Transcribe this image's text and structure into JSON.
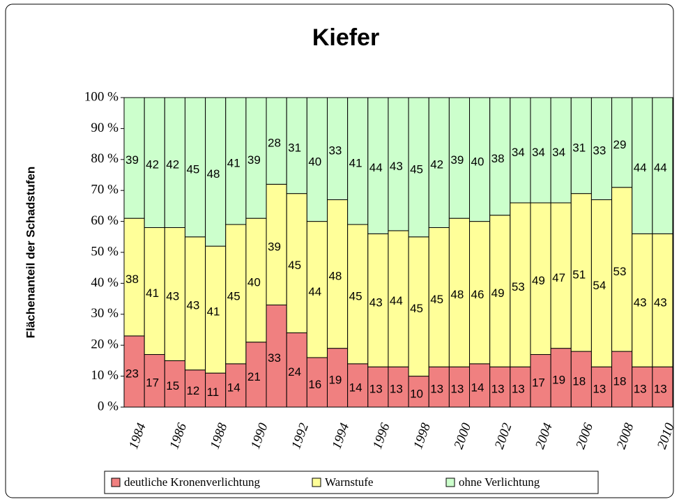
{
  "chart_data": {
    "type": "stacked_bar",
    "title": "Kiefer",
    "y_label": "Flächenanteil der Schadstufen",
    "categories": [
      "1984",
      null,
      "1986",
      null,
      "1988",
      null,
      "1990",
      null,
      "1992",
      null,
      "1994",
      null,
      "1996",
      null,
      "1998",
      null,
      "2000",
      null,
      "2002",
      null,
      "2004",
      null,
      "2006",
      null,
      "2008",
      null,
      "2010"
    ],
    "series": [
      {
        "name": "deutliche Kronenverlichtung",
        "color": "#f08080",
        "values": [
          23,
          17,
          15,
          12,
          11,
          14,
          21,
          33,
          24,
          16,
          19,
          14,
          13,
          13,
          10,
          13,
          13,
          14,
          13,
          13,
          17,
          19,
          18,
          13,
          18,
          13,
          13
        ]
      },
      {
        "name": "Warnstufe",
        "color": "#ffff99",
        "values": [
          38,
          41,
          43,
          43,
          41,
          45,
          40,
          39,
          45,
          44,
          48,
          45,
          43,
          44,
          45,
          45,
          48,
          46,
          49,
          53,
          49,
          47,
          51,
          54,
          53,
          43,
          43
        ]
      },
      {
        "name": "ohne Verlichtung",
        "color": "#ccffcc",
        "values": [
          39,
          42,
          42,
          45,
          48,
          41,
          39,
          28,
          31,
          40,
          33,
          41,
          44,
          43,
          45,
          42,
          39,
          40,
          38,
          34,
          34,
          34,
          31,
          33,
          29,
          44,
          44
        ]
      }
    ],
    "ylim": [
      0,
      100
    ],
    "yticks": [
      {
        "value": 0,
        "label": "0 %"
      },
      {
        "value": 10,
        "label": "10 %"
      },
      {
        "value": 20,
        "label": "20 %"
      },
      {
        "value": 30,
        "label": "30 %"
      },
      {
        "value": 40,
        "label": "40 %"
      },
      {
        "value": 50,
        "label": "50 %"
      },
      {
        "value": 60,
        "label": "60 %"
      },
      {
        "value": 70,
        "label": "70 %"
      },
      {
        "value": 80,
        "label": "80 %"
      },
      {
        "value": 90,
        "label": "90 %"
      },
      {
        "value": 100,
        "label": "100 %"
      }
    ],
    "legend": "bottom"
  }
}
